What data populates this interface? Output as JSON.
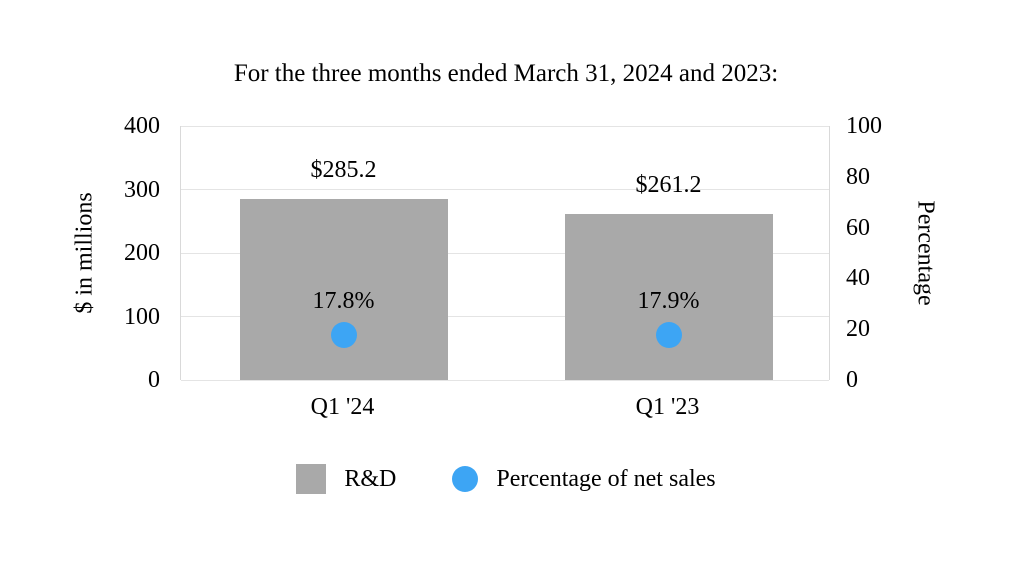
{
  "chart_data": {
    "type": "bar",
    "title": "For the three months ended March 31, 2024 and 2023:",
    "categories": [
      "Q1 '24",
      "Q1 '23"
    ],
    "series": [
      {
        "name": "R&D",
        "type": "bar",
        "marker": "square",
        "axis": "left",
        "values": [
          285.2,
          261.2
        ],
        "labels": [
          "$285.2",
          "$261.2"
        ],
        "color": "#a9a9a9"
      },
      {
        "name": "Percentage of net sales",
        "type": "scatter",
        "marker": "circle",
        "axis": "right",
        "values": [
          17.8,
          17.9
        ],
        "labels": [
          "17.8%",
          "17.9%"
        ],
        "color": "#3da5f4"
      }
    ],
    "left_axis": {
      "label": "$ in millions",
      "min": 0,
      "max": 400,
      "ticks": [
        0,
        100,
        200,
        300,
        400
      ]
    },
    "right_axis": {
      "label": "Percentage",
      "min": 0,
      "max": 100,
      "ticks": [
        0,
        20,
        40,
        60,
        80,
        100
      ]
    },
    "grid": true,
    "legend_position": "bottom",
    "background": "#ffffff"
  }
}
